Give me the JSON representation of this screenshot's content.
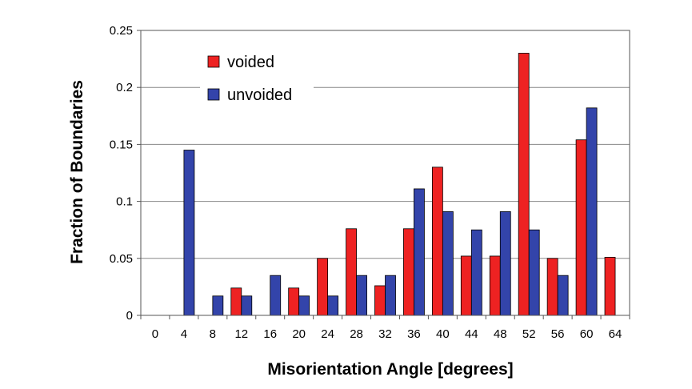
{
  "chart_data": {
    "type": "bar",
    "title": "",
    "xlabel": "Misorientation Angle [degrees]",
    "ylabel": "Fraction of Boundaries",
    "categories": [
      "0",
      "4",
      "8",
      "12",
      "16",
      "20",
      "24",
      "28",
      "32",
      "36",
      "40",
      "44",
      "48",
      "52",
      "56",
      "60",
      "64"
    ],
    "ylim": [
      0,
      0.25
    ],
    "yticks": [
      "0",
      "0.05",
      "0.1",
      "0.15",
      "0.2",
      "0.25"
    ],
    "grid": true,
    "legend_position": "top-left",
    "series": [
      {
        "name": "voided",
        "color": "#ee2222",
        "values": [
          0,
          0,
          0,
          0.024,
          0,
          0.024,
          0.05,
          0.076,
          0.026,
          0.076,
          0.13,
          0.052,
          0.052,
          0.23,
          0.05,
          0.154,
          0.051
        ]
      },
      {
        "name": "unvoided",
        "color": "#3344aa",
        "values": [
          0,
          0.145,
          0.017,
          0.017,
          0.035,
          0.017,
          0.017,
          0.035,
          0.035,
          0.111,
          0.091,
          0.075,
          0.091,
          0.075,
          0.035,
          0.182,
          0
        ]
      }
    ]
  }
}
